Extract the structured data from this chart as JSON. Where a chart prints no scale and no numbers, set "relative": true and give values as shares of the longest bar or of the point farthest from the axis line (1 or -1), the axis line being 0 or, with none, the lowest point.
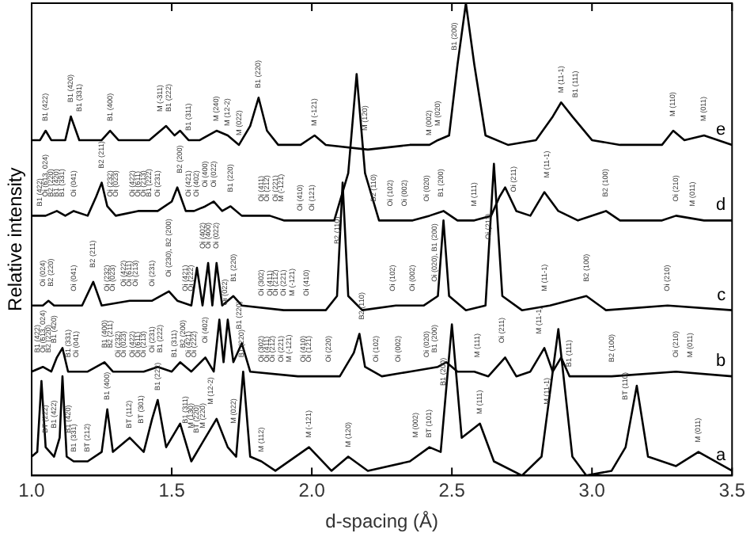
{
  "chart_data": {
    "type": "line",
    "relative": true,
    "xlabel": "d-spacing (Å)",
    "ylabel": "Relative intensity",
    "xlim": [
      1.0,
      3.5
    ],
    "xticks": [
      {
        "value": 1,
        "label": "1.0"
      },
      1.5,
      {
        "value": 2,
        "label": "2.0"
      },
      2.5,
      {
        "value": 3,
        "label": "3.0"
      },
      3.5
    ],
    "grid": false,
    "legend": false,
    "tick_labels": "x",
    "marker": "none",
    "line_style": "solid",
    "series": [
      {
        "name": "e",
        "color": "#000000",
        "x": [
          1.0,
          1.03,
          1.05,
          1.07,
          1.12,
          1.14,
          1.17,
          1.25,
          1.28,
          1.31,
          1.42,
          1.48,
          1.51,
          1.53,
          1.56,
          1.6,
          1.66,
          1.7,
          1.74,
          1.78,
          1.81,
          1.84,
          1.88,
          1.96,
          2.01,
          2.05,
          2.2,
          2.35,
          2.42,
          2.45,
          2.49,
          2.52,
          2.55,
          2.58,
          2.62,
          2.7,
          2.8,
          2.86,
          2.89,
          2.93,
          3.0,
          3.1,
          3.25,
          3.29,
          3.33,
          3.4,
          3.5
        ],
        "values": [
          0.71,
          0.71,
          0.73,
          0.71,
          0.71,
          0.76,
          0.71,
          0.71,
          0.73,
          0.71,
          0.71,
          0.74,
          0.72,
          0.73,
          0.71,
          0.71,
          0.73,
          0.72,
          0.7,
          0.74,
          0.8,
          0.73,
          0.7,
          0.7,
          0.72,
          0.7,
          0.69,
          0.7,
          0.7,
          0.71,
          0.72,
          0.87,
          1.0,
          0.87,
          0.72,
          0.7,
          0.71,
          0.76,
          0.79,
          0.76,
          0.71,
          0.7,
          0.7,
          0.73,
          0.71,
          0.72,
          0.7
        ]
      },
      {
        "name": "d",
        "color": "#000000",
        "x": [
          1.0,
          1.03,
          1.05,
          1.09,
          1.12,
          1.15,
          1.2,
          1.23,
          1.25,
          1.27,
          1.3,
          1.38,
          1.45,
          1.5,
          1.52,
          1.55,
          1.58,
          1.62,
          1.65,
          1.68,
          1.71,
          1.75,
          1.85,
          1.9,
          1.96,
          2.0,
          2.08,
          2.13,
          2.16,
          2.19,
          2.24,
          2.3,
          2.36,
          2.42,
          2.47,
          2.52,
          2.58,
          2.64,
          2.67,
          2.69,
          2.73,
          2.78,
          2.83,
          2.88,
          2.95,
          3.05,
          3.1,
          3.25,
          3.3,
          3.4,
          3.5
        ],
        "values": [
          0.55,
          0.55,
          0.55,
          0.56,
          0.55,
          0.56,
          0.55,
          0.59,
          0.62,
          0.57,
          0.55,
          0.56,
          0.56,
          0.58,
          0.61,
          0.56,
          0.56,
          0.57,
          0.58,
          0.56,
          0.57,
          0.55,
          0.55,
          0.54,
          0.54,
          0.54,
          0.54,
          0.64,
          0.85,
          0.64,
          0.54,
          0.54,
          0.54,
          0.55,
          0.56,
          0.54,
          0.54,
          0.55,
          0.59,
          0.61,
          0.56,
          0.55,
          0.6,
          0.56,
          0.54,
          0.56,
          0.54,
          0.54,
          0.55,
          0.54,
          0.54
        ]
      },
      {
        "name": "c",
        "color": "#000000",
        "x": [
          1.0,
          1.04,
          1.06,
          1.08,
          1.18,
          1.22,
          1.25,
          1.35,
          1.43,
          1.49,
          1.52,
          1.57,
          1.59,
          1.61,
          1.63,
          1.645,
          1.66,
          1.68,
          1.72,
          1.75,
          1.9,
          2.05,
          2.09,
          2.11,
          2.13,
          2.18,
          2.3,
          2.4,
          2.45,
          2.47,
          2.49,
          2.55,
          2.62,
          2.65,
          2.68,
          2.75,
          2.85,
          2.98,
          3.05,
          3.27,
          3.5
        ],
        "values": [
          0.36,
          0.36,
          0.37,
          0.36,
          0.36,
          0.41,
          0.36,
          0.37,
          0.37,
          0.39,
          0.37,
          0.36,
          0.44,
          0.36,
          0.45,
          0.36,
          0.45,
          0.36,
          0.38,
          0.36,
          0.35,
          0.35,
          0.38,
          0.62,
          0.38,
          0.35,
          0.36,
          0.36,
          0.38,
          0.54,
          0.38,
          0.35,
          0.36,
          0.66,
          0.38,
          0.35,
          0.36,
          0.38,
          0.35,
          0.36,
          0.35
        ]
      },
      {
        "name": "b",
        "color": "#000000",
        "x": [
          1.0,
          1.04,
          1.07,
          1.09,
          1.11,
          1.13,
          1.2,
          1.26,
          1.29,
          1.4,
          1.45,
          1.5,
          1.53,
          1.57,
          1.62,
          1.65,
          1.67,
          1.685,
          1.7,
          1.72,
          1.75,
          1.78,
          1.95,
          2.1,
          2.15,
          2.17,
          2.19,
          2.25,
          2.35,
          2.45,
          2.48,
          2.52,
          2.58,
          2.63,
          2.69,
          2.73,
          2.78,
          2.83,
          2.86,
          2.89,
          2.92,
          3.07,
          3.3,
          3.5
        ],
        "values": [
          0.22,
          0.23,
          0.22,
          0.25,
          0.27,
          0.22,
          0.22,
          0.24,
          0.22,
          0.22,
          0.23,
          0.22,
          0.24,
          0.22,
          0.25,
          0.22,
          0.33,
          0.24,
          0.33,
          0.24,
          0.28,
          0.22,
          0.21,
          0.21,
          0.26,
          0.3,
          0.23,
          0.21,
          0.22,
          0.23,
          0.24,
          0.22,
          0.22,
          0.21,
          0.25,
          0.21,
          0.22,
          0.27,
          0.22,
          0.25,
          0.21,
          0.21,
          0.22,
          0.21
        ]
      },
      {
        "name": "a",
        "color": "#000000",
        "x": [
          1.0,
          1.02,
          1.035,
          1.05,
          1.08,
          1.1,
          1.11,
          1.125,
          1.15,
          1.2,
          1.25,
          1.27,
          1.29,
          1.35,
          1.4,
          1.43,
          1.45,
          1.48,
          1.53,
          1.57,
          1.6,
          1.66,
          1.7,
          1.73,
          1.755,
          1.78,
          1.82,
          1.87,
          1.99,
          2.07,
          2.13,
          2.2,
          2.35,
          2.42,
          2.46,
          2.5,
          2.535,
          2.6,
          2.65,
          2.75,
          2.82,
          2.88,
          2.93,
          2.98,
          3.07,
          3.12,
          3.16,
          3.2,
          3.3,
          3.38,
          3.5
        ],
        "values": [
          0.04,
          0.05,
          0.2,
          0.06,
          0.04,
          0.08,
          0.21,
          0.04,
          0.03,
          0.03,
          0.05,
          0.14,
          0.05,
          0.08,
          0.05,
          0.12,
          0.16,
          0.06,
          0.11,
          0.03,
          0.06,
          0.12,
          0.06,
          0.04,
          0.22,
          0.04,
          0.03,
          0.01,
          0.06,
          0.01,
          0.04,
          0.01,
          0.03,
          0.06,
          0.05,
          0.32,
          0.08,
          0.11,
          0.03,
          0.0,
          0.04,
          0.31,
          0.04,
          0.0,
          0.01,
          0.06,
          0.19,
          0.04,
          0.02,
          0.05,
          0.01
        ]
      }
    ],
    "annotations": [
      {
        "text": "B1 (422)",
        "x": 1.05,
        "y": 0.73
      },
      {
        "text": "B1 (420)",
        "x": 1.14,
        "y": 0.77
      },
      {
        "text": "B1 (331)",
        "x": 1.17,
        "y": 0.75
      },
      {
        "text": "B1 (400)",
        "x": 1.28,
        "y": 0.73
      },
      {
        "text": "M (-311)",
        "x": 1.46,
        "y": 0.75
      },
      {
        "text": "B1 (222)",
        "x": 1.49,
        "y": 0.75
      },
      {
        "text": "B1 (311)",
        "x": 1.56,
        "y": 0.71
      },
      {
        "text": "M (240)",
        "x": 1.66,
        "y": 0.73
      },
      {
        "text": "M (12-2)",
        "x": 1.7,
        "y": 0.72
      },
      {
        "text": "M (022)",
        "x": 1.74,
        "y": 0.7
      },
      {
        "text": "B1 (220)",
        "x": 1.81,
        "y": 0.8
      },
      {
        "text": "M (-121)",
        "x": 2.01,
        "y": 0.72
      },
      {
        "text": "M (120)",
        "x": 2.19,
        "y": 0.71
      },
      {
        "text": "M (002)",
        "x": 2.42,
        "y": 0.7
      },
      {
        "text": "M (020)",
        "x": 2.45,
        "y": 0.72
      },
      {
        "text": "B1 (200)",
        "x": 2.51,
        "y": 0.88
      },
      {
        "text": "M (11-1)",
        "x": 2.89,
        "y": 0.79
      },
      {
        "text": "B1 (111)",
        "x": 2.94,
        "y": 0.78
      },
      {
        "text": "M (110)",
        "x": 3.29,
        "y": 0.74
      },
      {
        "text": "M (011)",
        "x": 3.4,
        "y": 0.73
      },
      {
        "text": "B1 (422)",
        "x": 1.03,
        "y": 0.55
      },
      {
        "text": "Oi (613, 024)",
        "x": 1.05,
        "y": 0.57
      },
      {
        "text": "B2 (220)",
        "x": 1.07,
        "y": 0.57
      },
      {
        "text": "B1 (420)",
        "x": 1.09,
        "y": 0.57
      },
      {
        "text": "B1 (331)",
        "x": 1.11,
        "y": 0.57
      },
      {
        "text": "Oi (041)",
        "x": 1.15,
        "y": 0.57
      },
      {
        "text": "B2 (211)",
        "x": 1.25,
        "y": 0.63
      },
      {
        "text": "Oi (232)",
        "x": 1.28,
        "y": 0.57
      },
      {
        "text": "Oi (023)",
        "x": 1.3,
        "y": 0.57
      },
      {
        "text": "Oi (422)",
        "x": 1.36,
        "y": 0.57
      },
      {
        "text": "Oi (611)",
        "x": 1.38,
        "y": 0.57
      },
      {
        "text": "Oi (213)",
        "x": 1.4,
        "y": 0.57
      },
      {
        "text": "B1 (222)",
        "x": 1.42,
        "y": 0.57
      },
      {
        "text": "Oi (231)",
        "x": 1.45,
        "y": 0.57
      },
      {
        "text": "B2 (200)",
        "x": 1.53,
        "y": 0.62
      },
      {
        "text": "Oi (421)",
        "x": 1.56,
        "y": 0.57
      },
      {
        "text": "Oi (402)",
        "x": 1.59,
        "y": 0.57
      },
      {
        "text": "Oi (400)",
        "x": 1.62,
        "y": 0.59
      },
      {
        "text": "Oi (022)",
        "x": 1.65,
        "y": 0.59
      },
      {
        "text": "B1 (220)",
        "x": 1.71,
        "y": 0.58
      },
      {
        "text": "Oi (411)",
        "x": 1.82,
        "y": 0.56
      },
      {
        "text": "Oi (212)",
        "x": 1.84,
        "y": 0.56
      },
      {
        "text": "Oi (221)",
        "x": 1.87,
        "y": 0.56
      },
      {
        "text": "M (-121)",
        "x": 1.89,
        "y": 0.56
      },
      {
        "text": "Oi (410)",
        "x": 1.96,
        "y": 0.54
      },
      {
        "text": "Oi (121)",
        "x": 2.0,
        "y": 0.54
      },
      {
        "text": "B2 (110)",
        "x": 2.22,
        "y": 0.56
      },
      {
        "text": "Oi (102)",
        "x": 2.28,
        "y": 0.55
      },
      {
        "text": "Oi (002)",
        "x": 2.33,
        "y": 0.55
      },
      {
        "text": "Oi (020)",
        "x": 2.41,
        "y": 0.56
      },
      {
        "text": "B1 (200)",
        "x": 2.46,
        "y": 0.57
      },
      {
        "text": "M (111)",
        "x": 2.58,
        "y": 0.55
      },
      {
        "text": "Oi (211)",
        "x": 2.72,
        "y": 0.58
      },
      {
        "text": "M (11-1)",
        "x": 2.84,
        "y": 0.61
      },
      {
        "text": "B2 (100)",
        "x": 3.05,
        "y": 0.57
      },
      {
        "text": "Oi (210)",
        "x": 3.3,
        "y": 0.56
      },
      {
        "text": "M (011)",
        "x": 3.36,
        "y": 0.55
      },
      {
        "text": "Oi (024)",
        "x": 1.04,
        "y": 0.38
      },
      {
        "text": "B2 (220)",
        "x": 1.07,
        "y": 0.38
      },
      {
        "text": "Oi (041)",
        "x": 1.15,
        "y": 0.37
      },
      {
        "text": "B2 (211)",
        "x": 1.22,
        "y": 0.42
      },
      {
        "text": "Oi (232)",
        "x": 1.27,
        "y": 0.37
      },
      {
        "text": "Oi (023)",
        "x": 1.29,
        "y": 0.37
      },
      {
        "text": "Oi (422)",
        "x": 1.33,
        "y": 0.38
      },
      {
        "text": "Oi (611)",
        "x": 1.35,
        "y": 0.38
      },
      {
        "text": "Oi (213)",
        "x": 1.37,
        "y": 0.38
      },
      {
        "text": "Oi (231)",
        "x": 1.43,
        "y": 0.38
      },
      {
        "text": "Oi (230), B2 (200)",
        "x": 1.49,
        "y": 0.4
      },
      {
        "text": "Oi (421)",
        "x": 1.55,
        "y": 0.37
      },
      {
        "text": "Oi (222)",
        "x": 1.57,
        "y": 0.37
      },
      {
        "text": "Oi (402)",
        "x": 1.61,
        "y": 0.46
      },
      {
        "text": "Oi (400)",
        "x": 1.63,
        "y": 0.46
      },
      {
        "text": "Oi (022)",
        "x": 1.66,
        "y": 0.46
      },
      {
        "text": "B1 (220)",
        "x": 1.72,
        "y": 0.39
      },
      {
        "text": "Oi (302)",
        "x": 1.82,
        "y": 0.36
      },
      {
        "text": "Oi (411)",
        "x": 1.85,
        "y": 0.36
      },
      {
        "text": "Oi (212)",
        "x": 1.87,
        "y": 0.36
      },
      {
        "text": "Oi (221)",
        "x": 1.9,
        "y": 0.36
      },
      {
        "text": "M (-121)",
        "x": 1.93,
        "y": 0.36
      },
      {
        "text": "Oi (410)",
        "x": 1.98,
        "y": 0.36
      },
      {
        "text": "B2 (110)",
        "x": 2.09,
        "y": 0.47
      },
      {
        "text": "Oi (102)",
        "x": 2.29,
        "y": 0.37
      },
      {
        "text": "Oi (002)",
        "x": 2.36,
        "y": 0.37
      },
      {
        "text": "Oi (020), B1 (200)",
        "x": 2.44,
        "y": 0.39
      },
      {
        "text": "Oi (211)",
        "x": 2.63,
        "y": 0.48
      },
      {
        "text": "M (11-1)",
        "x": 2.83,
        "y": 0.37
      },
      {
        "text": "B2 (100)",
        "x": 2.98,
        "y": 0.39
      },
      {
        "text": "Oi (210)",
        "x": 3.27,
        "y": 0.37
      },
      {
        "text": "B1 (422)",
        "x": 1.02,
        "y": 0.24
      },
      {
        "text": "Oi (613, 024)",
        "x": 1.04,
        "y": 0.24
      },
      {
        "text": "B2 (220)",
        "x": 1.06,
        "y": 0.24
      },
      {
        "text": "B1 (420)",
        "x": 1.08,
        "y": 0.26
      },
      {
        "text": "B1 (331)",
        "x": 1.13,
        "y": 0.23
      },
      {
        "text": "Oi (041)",
        "x": 1.16,
        "y": 0.23
      },
      {
        "text": "B1 (400)",
        "x": 1.26,
        "y": 0.25
      },
      {
        "text": "B2 (211)",
        "x": 1.28,
        "y": 0.25
      },
      {
        "text": "Oi (232)",
        "x": 1.31,
        "y": 0.23
      },
      {
        "text": "Oi (023)",
        "x": 1.33,
        "y": 0.23
      },
      {
        "text": "Oi (422)",
        "x": 1.36,
        "y": 0.23
      },
      {
        "text": "Oi (611)",
        "x": 1.38,
        "y": 0.23
      },
      {
        "text": "Oi (213)",
        "x": 1.4,
        "y": 0.23
      },
      {
        "text": "Oi (231)",
        "x": 1.43,
        "y": 0.24
      },
      {
        "text": "B1 (222)",
        "x": 1.46,
        "y": 0.24
      },
      {
        "text": "B1 (311)",
        "x": 1.51,
        "y": 0.23
      },
      {
        "text": "B2 (200)",
        "x": 1.54,
        "y": 0.25
      },
      {
        "text": "Oi (421)",
        "x": 1.56,
        "y": 0.23
      },
      {
        "text": "Oi (222)",
        "x": 1.58,
        "y": 0.23
      },
      {
        "text": "Oi (402)",
        "x": 1.62,
        "y": 0.26
      },
      {
        "text": "Oi (022)",
        "x": 1.69,
        "y": 0.34
      },
      {
        "text": "B1 (220)",
        "x": 1.74,
        "y": 0.29
      },
      {
        "text": "Oi (302)",
        "x": 1.82,
        "y": 0.22
      },
      {
        "text": "Oi (411)",
        "x": 1.84,
        "y": 0.22
      },
      {
        "text": "Oi (212)",
        "x": 1.86,
        "y": 0.22
      },
      {
        "text": "Oi (221)",
        "x": 1.89,
        "y": 0.22
      },
      {
        "text": "M (-121)",
        "x": 1.92,
        "y": 0.22
      },
      {
        "text": "Oi (410)",
        "x": 1.97,
        "y": 0.22
      },
      {
        "text": "Oi (121)",
        "x": 1.99,
        "y": 0.22
      },
      {
        "text": "Oi (220)",
        "x": 2.06,
        "y": 0.22
      },
      {
        "text": "B2 (110)",
        "x": 2.18,
        "y": 0.31
      },
      {
        "text": "Oi (102)",
        "x": 2.23,
        "y": 0.22
      },
      {
        "text": "Oi (002)",
        "x": 2.31,
        "y": 0.22
      },
      {
        "text": "Oi (020)",
        "x": 2.41,
        "y": 0.23
      },
      {
        "text": "B1 (200)",
        "x": 2.44,
        "y": 0.24
      },
      {
        "text": "M (111)",
        "x": 2.59,
        "y": 0.23
      },
      {
        "text": "Oi (211)",
        "x": 2.68,
        "y": 0.26
      },
      {
        "text": "M (11-1)",
        "x": 2.81,
        "y": 0.28
      },
      {
        "text": "B1 (111)",
        "x": 2.92,
        "y": 0.21
      },
      {
        "text": "B2 (100)",
        "x": 3.07,
        "y": 0.22
      },
      {
        "text": "Oi (210)",
        "x": 3.3,
        "y": 0.23
      },
      {
        "text": "M (011)",
        "x": 3.35,
        "y": 0.23
      },
      {
        "text": "BT (222)",
        "x": 1.05,
        "y": 0.07
      },
      {
        "text": "B1 (422)",
        "x": 1.08,
        "y": 0.08
      },
      {
        "text": "B1 (420)",
        "x": 1.13,
        "y": 0.07
      },
      {
        "text": "B1 (331)",
        "x": 1.15,
        "y": 0.03
      },
      {
        "text": "BT (212)",
        "x": 1.2,
        "y": 0.03
      },
      {
        "text": "B1 (400)",
        "x": 1.27,
        "y": 0.14
      },
      {
        "text": "BT (112)",
        "x": 1.35,
        "y": 0.08
      },
      {
        "text": "BT (301)",
        "x": 1.39,
        "y": 0.09
      },
      {
        "text": "B1 (222)",
        "x": 1.45,
        "y": 0.16
      },
      {
        "text": "B1 (311)",
        "x": 1.55,
        "y": 0.09
      },
      {
        "text": "M (130)",
        "x": 1.57,
        "y": 0.08
      },
      {
        "text": "BT (220)",
        "x": 1.59,
        "y": 0.07
      },
      {
        "text": "M (220)",
        "x": 1.61,
        "y": 0.08
      },
      {
        "text": "M (12-2)",
        "x": 1.64,
        "y": 0.13
      },
      {
        "text": "M (022)",
        "x": 1.72,
        "y": 0.09
      },
      {
        "text": "B1 (220)",
        "x": 1.75,
        "y": 0.23
      },
      {
        "text": "M (112)",
        "x": 1.82,
        "y": 0.03
      },
      {
        "text": "M (-121)",
        "x": 1.99,
        "y": 0.06
      },
      {
        "text": "M (120)",
        "x": 2.13,
        "y": 0.04
      },
      {
        "text": "M (002)",
        "x": 2.37,
        "y": 0.06
      },
      {
        "text": "BT (101)",
        "x": 2.42,
        "y": 0.06
      },
      {
        "text": "B1 (200)",
        "x": 2.47,
        "y": 0.17
      },
      {
        "text": "M (111)",
        "x": 2.6,
        "y": 0.11
      },
      {
        "text": "M (11-1)",
        "x": 2.84,
        "y": 0.13
      },
      {
        "text": "BT (110)",
        "x": 3.12,
        "y": 0.14
      },
      {
        "text": "M (011)",
        "x": 3.38,
        "y": 0.05
      }
    ]
  }
}
